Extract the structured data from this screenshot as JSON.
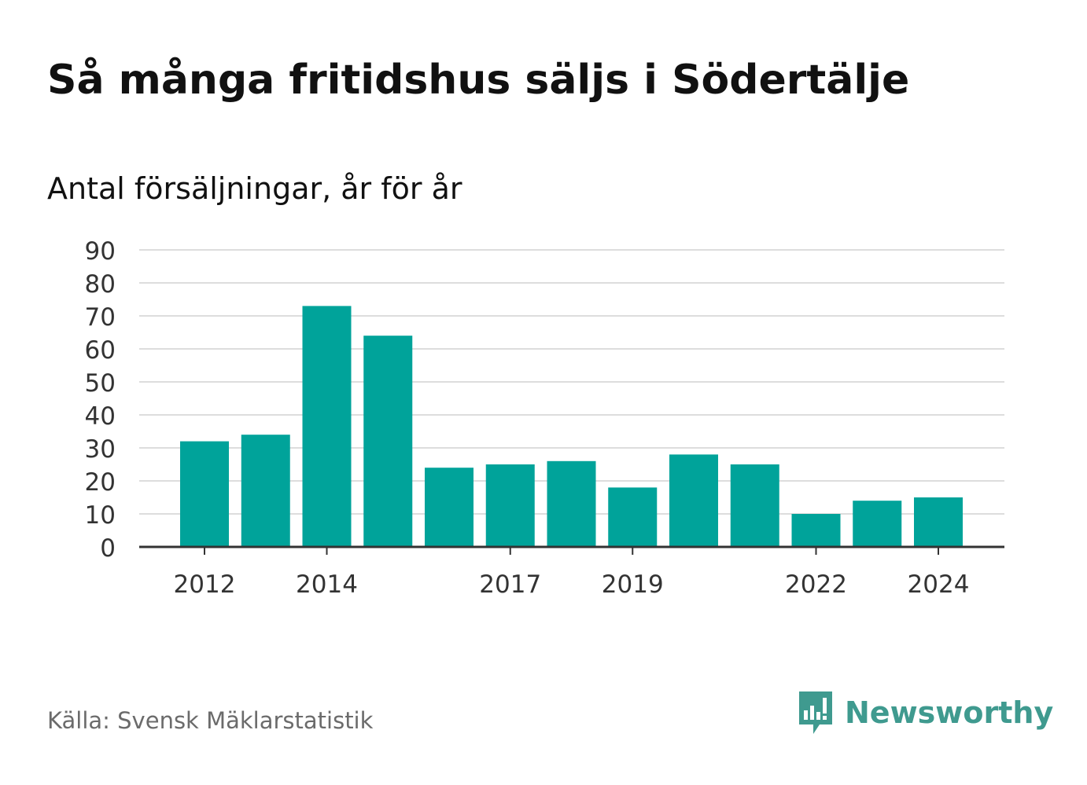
{
  "header": {
    "title": "Så många fritidshus säljs i Södertälje",
    "subtitle": "Antal försäljningar, år för år"
  },
  "footer": {
    "source": "Källa: Svensk Mäklarstatistik",
    "brand": "Newsworthy",
    "brand_icon": "newsworthy-logo-icon"
  },
  "colors": {
    "bar": "#00a39a",
    "grid": "#dddddd",
    "axis": "#333333",
    "brand": "#3f9a8f"
  },
  "chart_data": {
    "type": "bar",
    "categories": [
      "2012",
      "2013",
      "2014",
      "2015",
      "2016",
      "2017",
      "2018",
      "2019",
      "2020",
      "2021",
      "2022",
      "2023",
      "2024"
    ],
    "values": [
      32,
      34,
      73,
      64,
      24,
      25,
      26,
      18,
      28,
      25,
      10,
      14,
      15
    ],
    "xtick_labels": [
      "2012",
      "2014",
      "2017",
      "2019",
      "2022",
      "2024"
    ],
    "yticks": [
      0,
      10,
      20,
      30,
      40,
      50,
      60,
      70,
      80,
      90
    ],
    "ylim": [
      0,
      90
    ],
    "grid": true
  }
}
